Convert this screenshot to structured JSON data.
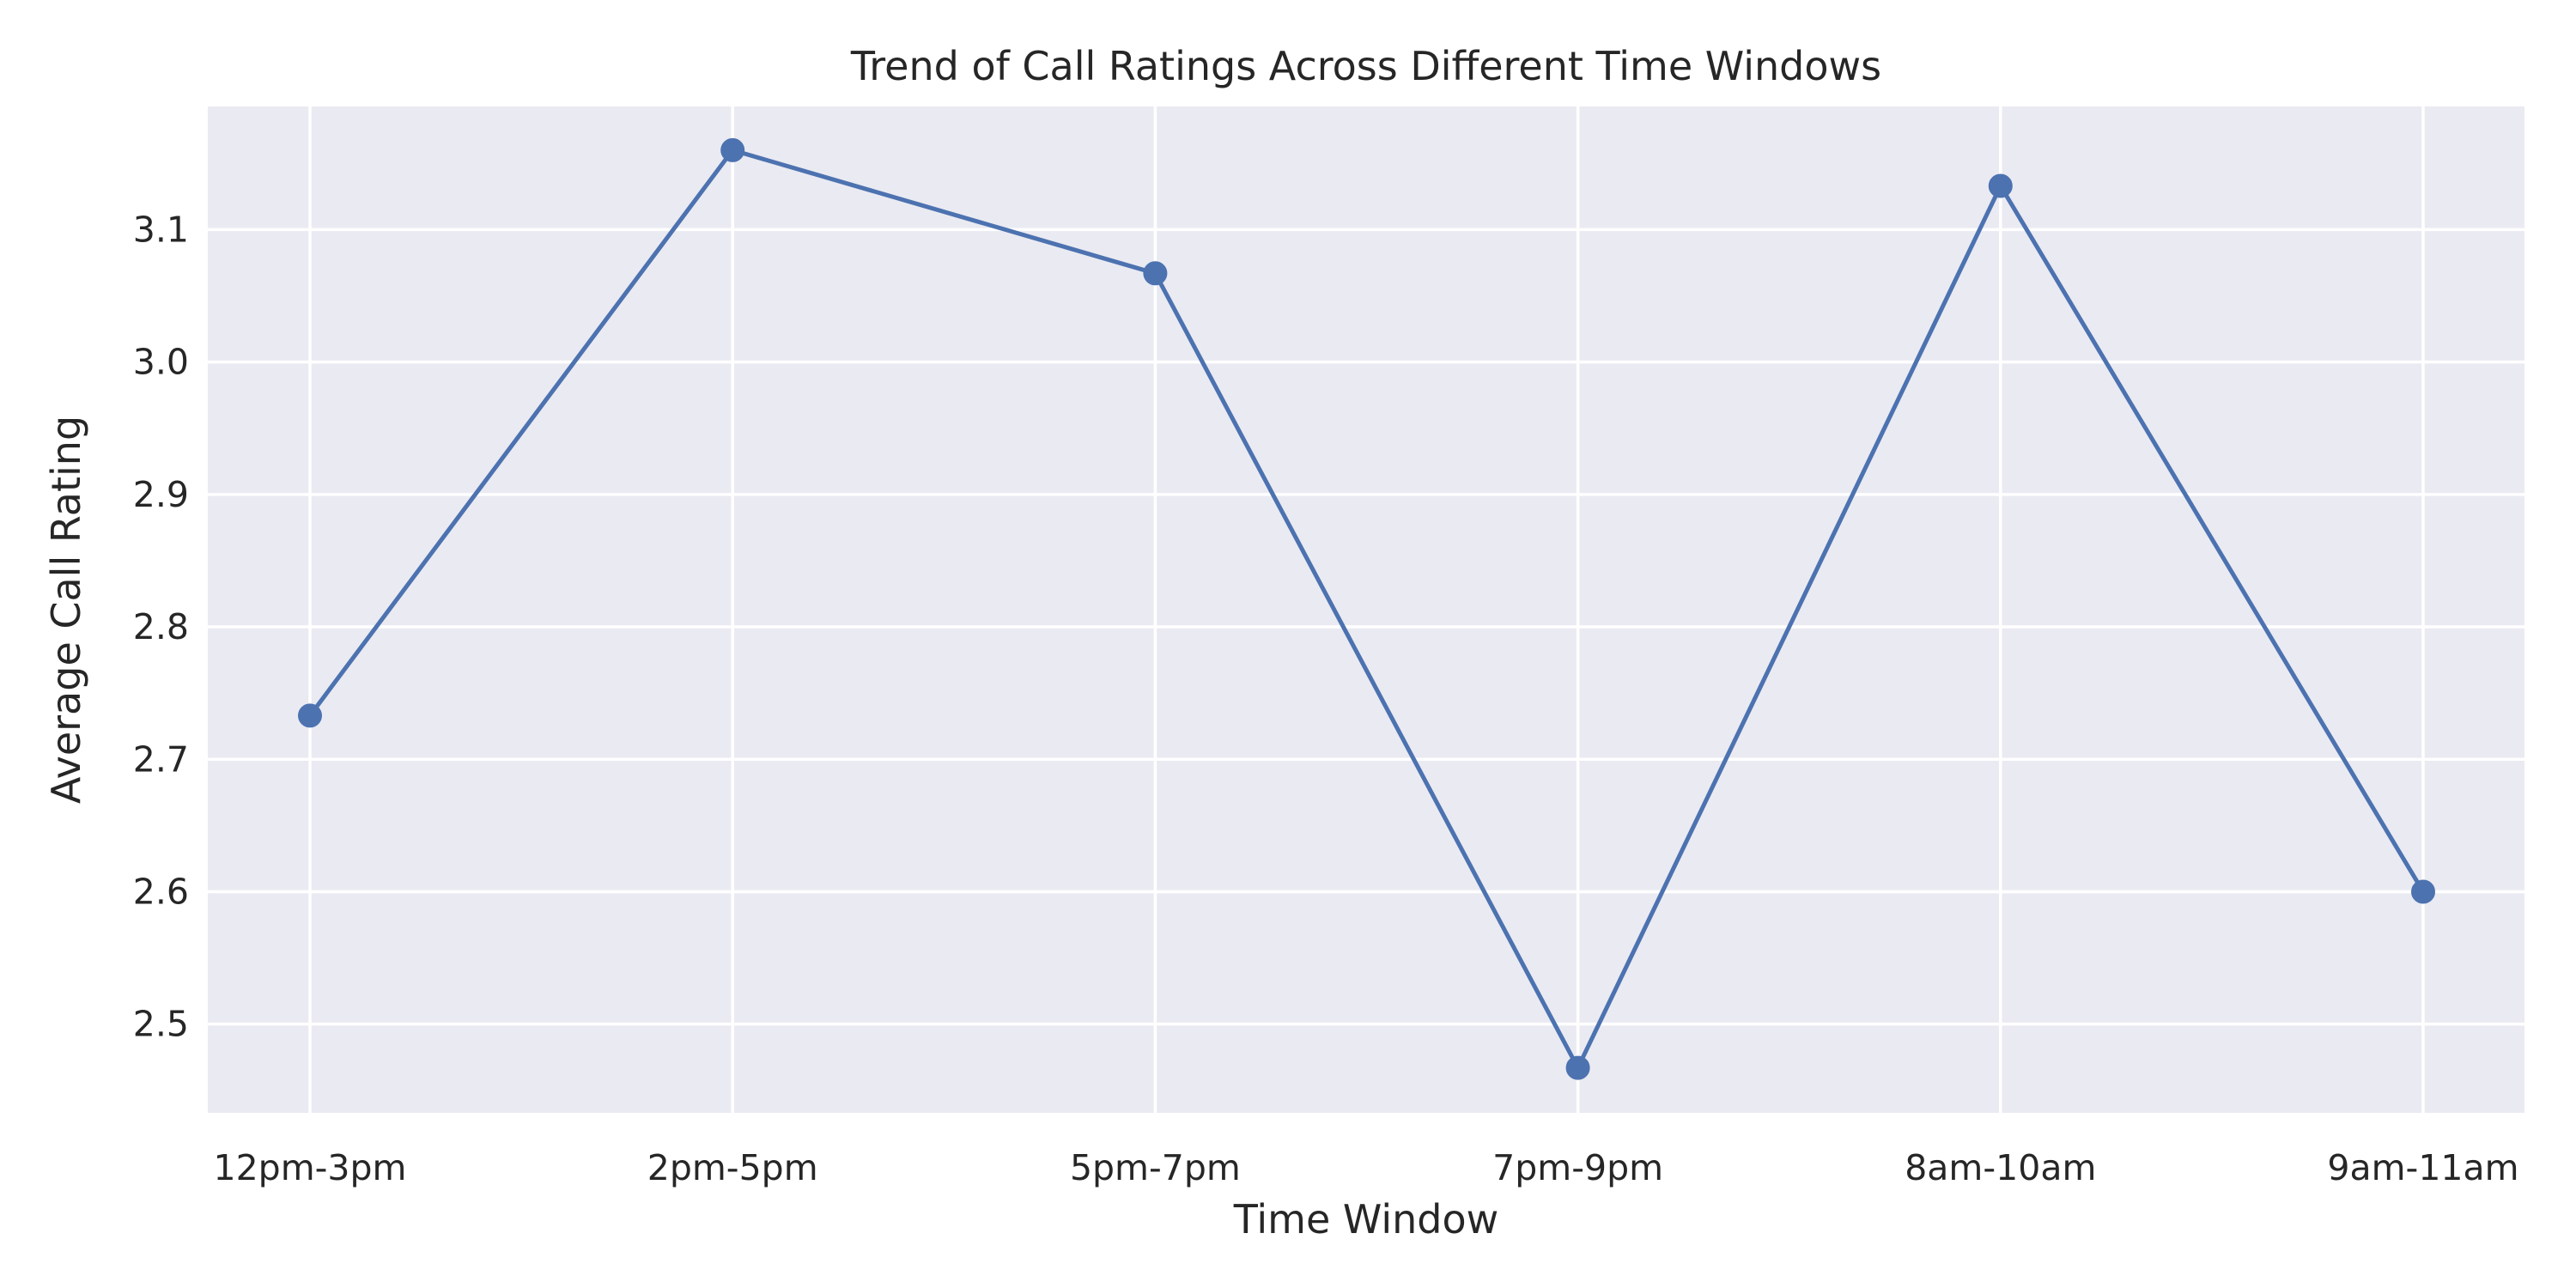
{
  "chart_data": {
    "type": "line",
    "title": "Trend of Call Ratings Across Different Time Windows",
    "xlabel": "Time Window",
    "ylabel": "Average Call Rating",
    "categories": [
      "12pm-3pm",
      "2pm-5pm",
      "5pm-7pm",
      "7pm-9pm",
      "8am-10am",
      "9am-11am"
    ],
    "series": [
      {
        "values": [
          2.733,
          3.16,
          3.067,
          2.467,
          3.133,
          2.6
        ]
      }
    ],
    "ylim": [
      2.433,
      3.193
    ],
    "yticks": [
      "2.5",
      "2.6",
      "2.7",
      "2.8",
      "2.9",
      "3.0",
      "3.1"
    ],
    "grid": true,
    "legend": "none",
    "colors": {
      "plot_background": "#EAEAF2",
      "grid": "#FFFFFF",
      "line": "#4C72B0",
      "text": "#262626"
    }
  }
}
